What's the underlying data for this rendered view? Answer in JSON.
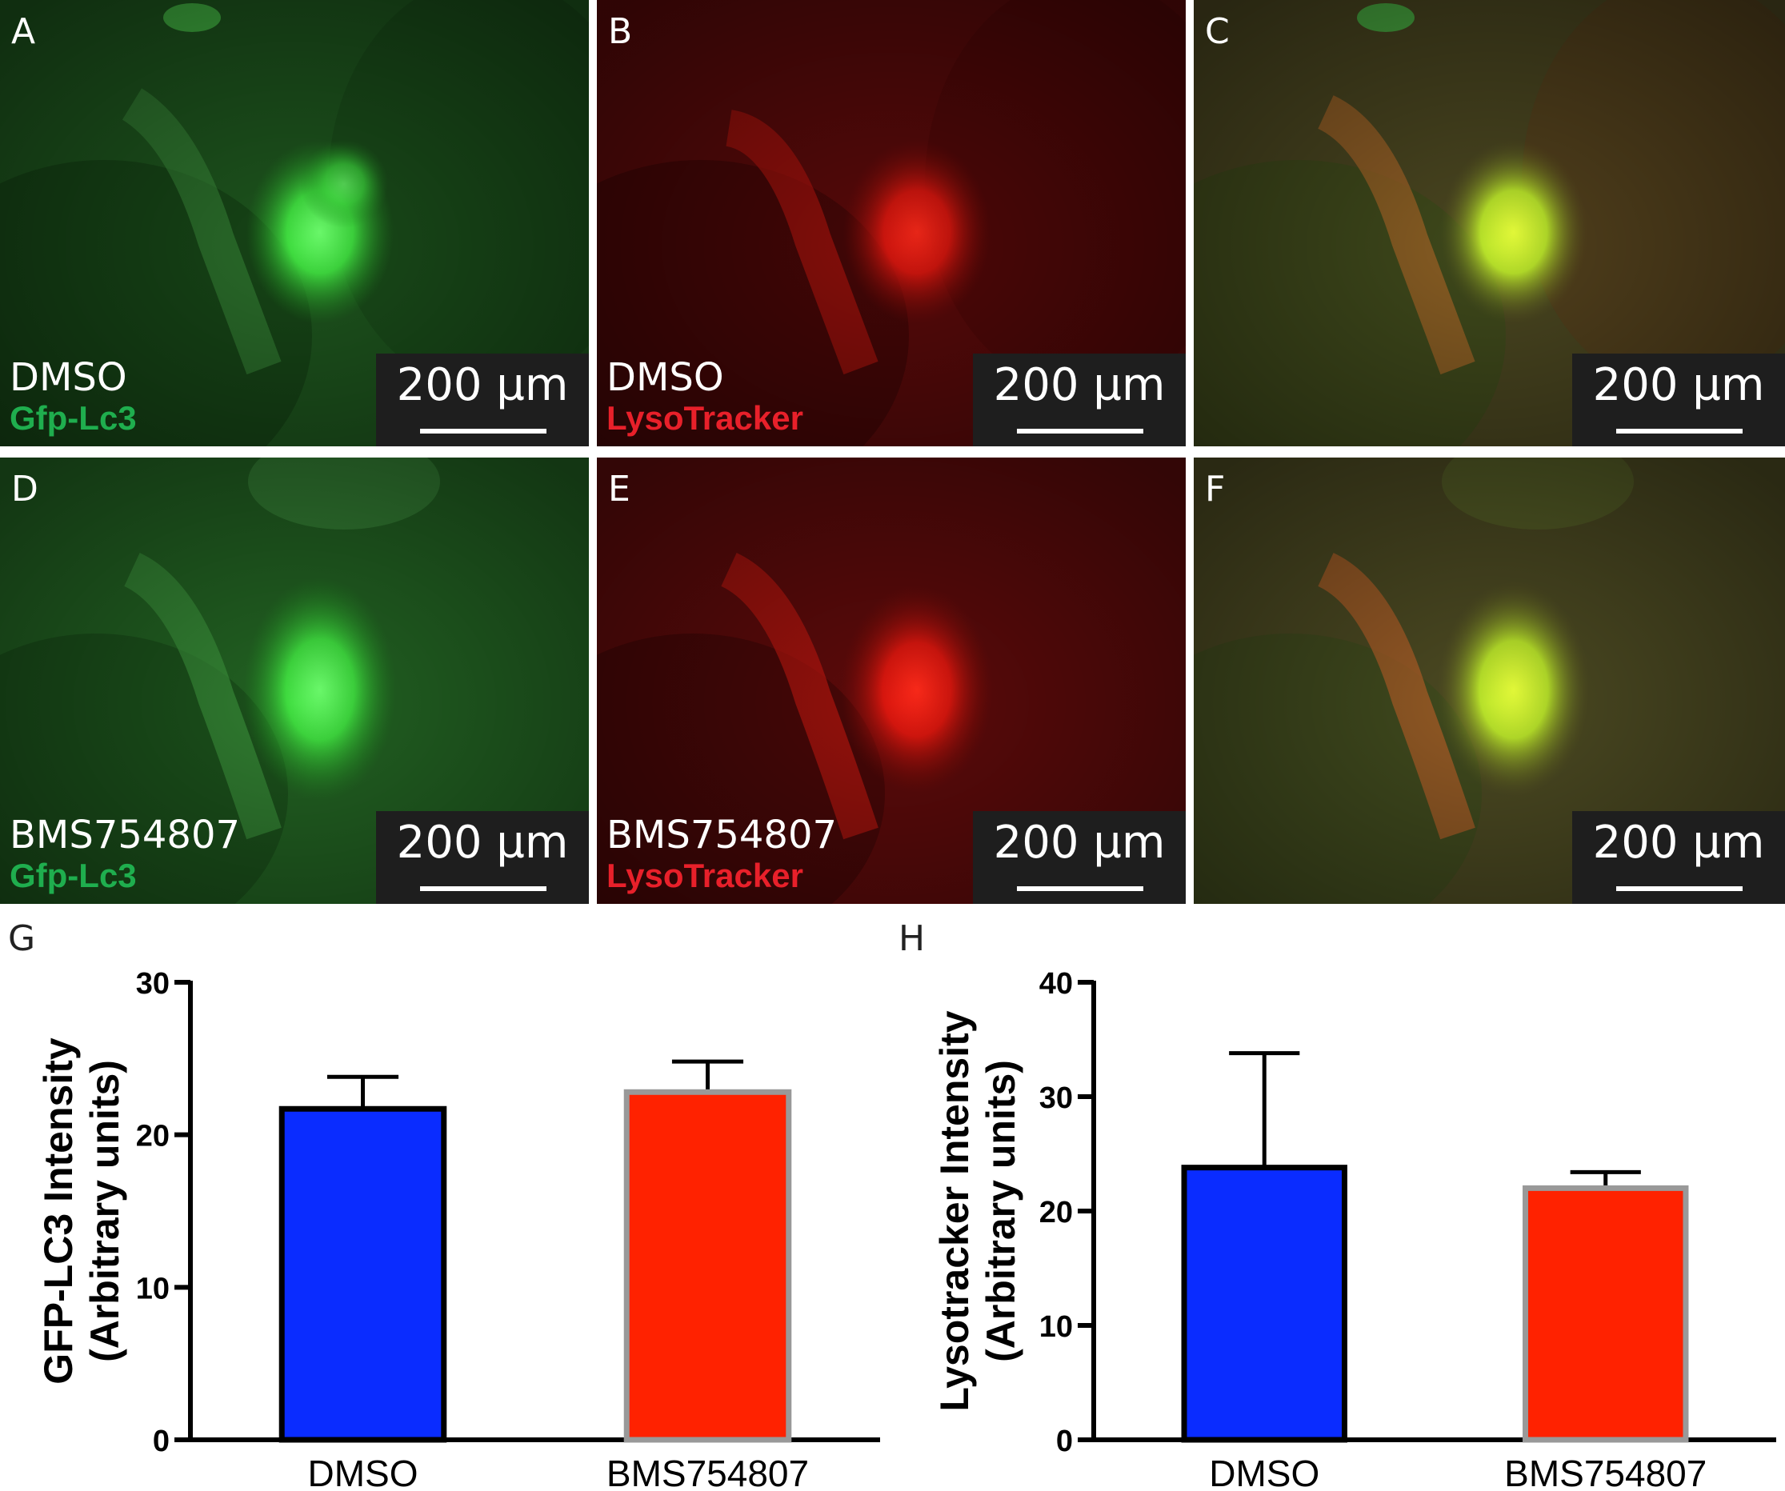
{
  "panels": [
    {
      "letter": "A",
      "condition": "DMSO",
      "marker": "Gfp-Lc3",
      "scale": "200 µm",
      "channel": "green"
    },
    {
      "letter": "B",
      "condition": "DMSO",
      "marker": "LysoTracker",
      "scale": "200 µm",
      "channel": "red"
    },
    {
      "letter": "C",
      "condition": "",
      "marker": "",
      "scale": "200 µm",
      "channel": "merge"
    },
    {
      "letter": "D",
      "condition": "BMS754807",
      "marker": "Gfp-Lc3",
      "scale": "200 µm",
      "channel": "green"
    },
    {
      "letter": "E",
      "condition": "BMS754807",
      "marker": "LysoTracker",
      "scale": "200 µm",
      "channel": "red"
    },
    {
      "letter": "F",
      "condition": "",
      "marker": "",
      "scale": "200 µm",
      "channel": "merge"
    }
  ],
  "colors": {
    "green_marker": "#1fae4e",
    "red_marker": "#e8202a",
    "dmso_bar": "#0a2cff",
    "bms_bar": "#ff2200"
  },
  "chart_data": [
    {
      "panel_letter": "G",
      "type": "bar",
      "categories": [
        "DMSO",
        "BMS754807"
      ],
      "values": [
        21.7,
        22.8
      ],
      "errors": [
        2.1,
        2.0
      ],
      "bar_colors": [
        "#0a2cff",
        "#ff2200"
      ],
      "ylabel": [
        "GFP-LC3 Intensity",
        "(Arbitrary units)"
      ],
      "ylim": [
        0,
        30
      ],
      "yticks": [
        0,
        10,
        20,
        30
      ]
    },
    {
      "panel_letter": "H",
      "type": "bar",
      "categories": [
        "DMSO",
        "BMS754807"
      ],
      "values": [
        23.8,
        22.0
      ],
      "errors": [
        10.0,
        1.4
      ],
      "bar_colors": [
        "#0a2cff",
        "#ff2200"
      ],
      "ylabel": [
        "Lysotracker Intensity",
        "(Arbitrary units)"
      ],
      "ylim": [
        0,
        40
      ],
      "yticks": [
        0,
        10,
        20,
        30,
        40
      ]
    }
  ]
}
